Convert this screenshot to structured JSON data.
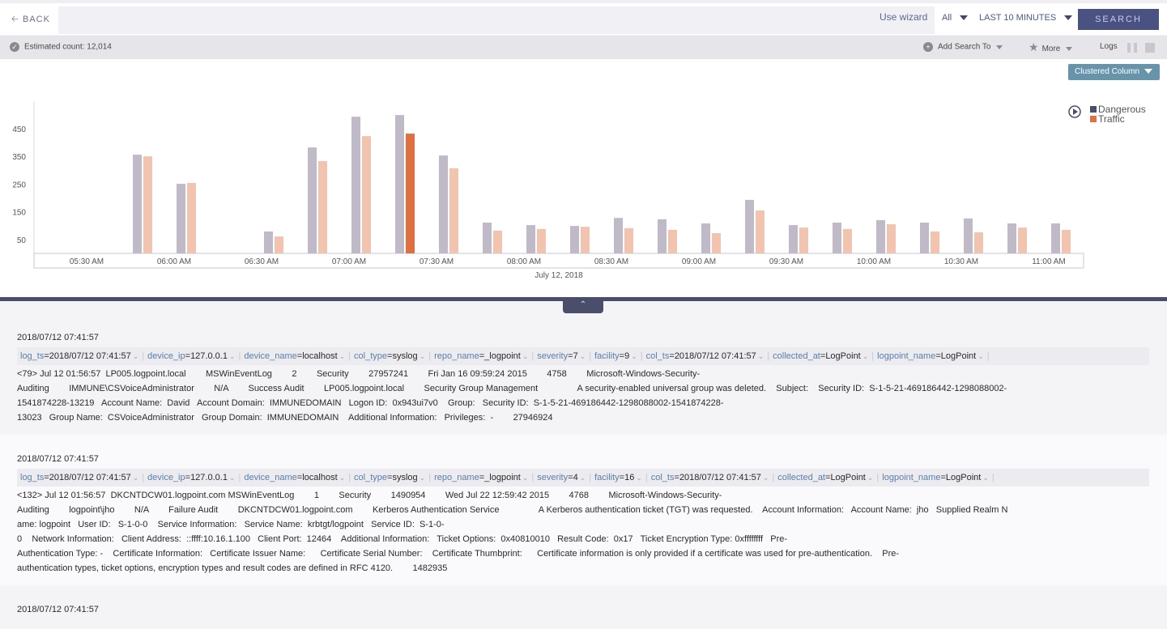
{
  "topbar": {
    "back_label": "BACK",
    "query_value": "",
    "use_wizard": "Use wizard",
    "repo_select": "All",
    "time_range": "LAST 10 MINUTES",
    "search_label": "SEARCH"
  },
  "toolbar": {
    "estimated_count": "Estimated count: 12,014",
    "add_search_to": "Add Search To",
    "more": "More",
    "logs": "Logs"
  },
  "chart_type_select": "Clustered Column",
  "colors": {
    "dangerous": "#4a4e6a",
    "traffic": "#e07040",
    "dangerous_bar": "#c0bac8",
    "traffic_bar": "#f2c4b0",
    "traffic_highlight": "#e07040"
  },
  "chart_data": {
    "type": "bar",
    "xlabel": "July 12, 2018",
    "ylabel": "",
    "ylim": [
      0,
      510
    ],
    "yticks": [
      50,
      150,
      250,
      350,
      450
    ],
    "xticks": [
      "05:30 AM",
      "06:00 AM",
      "06:30 AM",
      "07:00 AM",
      "07:30 AM",
      "08:00 AM",
      "08:30 AM",
      "09:00 AM",
      "09:30 AM",
      "10:00 AM",
      "10:30 AM",
      "11:00 AM"
    ],
    "legend_position": "top-right",
    "categories": [
      "05:45",
      "06:00",
      "06:30",
      "06:45",
      "07:00",
      "07:15",
      "07:30",
      "07:45",
      "08:00",
      "08:15",
      "08:30",
      "08:45",
      "09:00",
      "09:15",
      "09:30",
      "09:45",
      "10:00",
      "10:15",
      "10:30",
      "10:45",
      "11:00"
    ],
    "series": [
      {
        "name": "Dangerous",
        "values": [
          356,
          251,
          79,
          382,
          493,
          499,
          353,
          111,
          102,
          99,
          128,
          123,
          108,
          193,
          102,
          111,
          120,
          111,
          126,
          108,
          108
        ]
      },
      {
        "name": "Traffic",
        "values": [
          350,
          254,
          61,
          333,
          423,
          432,
          307,
          82,
          88,
          96,
          91,
          85,
          73,
          155,
          93,
          88,
          105,
          79,
          76,
          93,
          85
        ]
      }
    ],
    "highlighted": {
      "series": "Traffic",
      "category": "07:15"
    }
  },
  "logs": [
    {
      "timestamp": "2018/07/12 07:41:57",
      "fields": [
        {
          "k": "log_ts",
          "v": "2018/07/12 07:41:57"
        },
        {
          "k": "device_ip",
          "v": "127.0.0.1"
        },
        {
          "k": "device_name",
          "v": "localhost"
        },
        {
          "k": "col_type",
          "v": "syslog"
        },
        {
          "k": "repo_name",
          "v": "_logpoint"
        },
        {
          "k": "severity",
          "v": "7"
        },
        {
          "k": "facility",
          "v": "9"
        },
        {
          "k": "col_ts",
          "v": "2018/07/12 07:41:57"
        },
        {
          "k": "collected_at",
          "v": "LogPoint"
        },
        {
          "k": "logpoint_name",
          "v": "LogPoint"
        }
      ],
      "message": "<79> Jul 12 01:56:57  LP005.logpoint.local        MSWinEventLog        2        Security        27957241        Fri Jan 16 09:59:24 2015        4758        Microsoft-Windows-Security-\nAuditing        IMMUNE\\CSVoiceAdministrator        N/A        Success Audit        LP005.logpoint.local        Security Group Management                A security-enabled universal group was deleted.    Subject:    Security ID:  S-1-5-21-469186442-1298088002-\n1541874228-13219   Account Name:  David   Account Domain:  IMMUNEDOMAIN   Logon ID:  0x943ui7v0    Group:   Security ID:  S-1-5-21-469186442-1298088002-1541874228-\n13023   Group Name:  CSVoiceAdministrator   Group Domain:  IMMUNEDOMAIN    Additional Information:   Privileges:  -        27946924"
    },
    {
      "timestamp": "2018/07/12 07:41:57",
      "fields": [
        {
          "k": "log_ts",
          "v": "2018/07/12 07:41:57"
        },
        {
          "k": "device_ip",
          "v": "127.0.0.1"
        },
        {
          "k": "device_name",
          "v": "localhost"
        },
        {
          "k": "col_type",
          "v": "syslog"
        },
        {
          "k": "repo_name",
          "v": "_logpoint"
        },
        {
          "k": "severity",
          "v": "4"
        },
        {
          "k": "facility",
          "v": "16"
        },
        {
          "k": "col_ts",
          "v": "2018/07/12 07:41:57"
        },
        {
          "k": "collected_at",
          "v": "LogPoint"
        },
        {
          "k": "logpoint_name",
          "v": "LogPoint"
        }
      ],
      "message": "<132> Jul 12 01:56:57  DKCNTDCW01.logpoint.com MSWinEventLog        1        Security        1490954        Wed Jul 22 12:59:42 2015        4768        Microsoft-Windows-Security-\nAuditing        logpoint\\jho        N/A        Failure Audit        DKCNTDCW01.logpoint.com        Kerberos Authentication Service                A Kerberos authentication ticket (TGT) was requested.    Account Information:   Account Name:  jho   Supplied Realm N\name: logpoint   User ID:   S-1-0-0    Service Information:   Service Name:  krbtgt/logpoint   Service ID:  S-1-0-\n0    Network Information:   Client Address:  ::ffff:10.16.1.100   Client Port:  12464    Additional Information:   Ticket Options:  0x40810010   Result Code:  0x17   Ticket Encryption Type: 0xffffffff   Pre-\nAuthentication Type: -    Certificate Information:   Certificate Issuer Name:      Certificate Serial Number:    Certificate Thumbprint:      Certificate information is only provided if a certificate was used for pre-authentication.    Pre-\nauthentication types, ticket options, encryption types and result codes are defined in RFC 4120.        1482935"
    },
    {
      "timestamp": "2018/07/12 07:41:57"
    }
  ]
}
